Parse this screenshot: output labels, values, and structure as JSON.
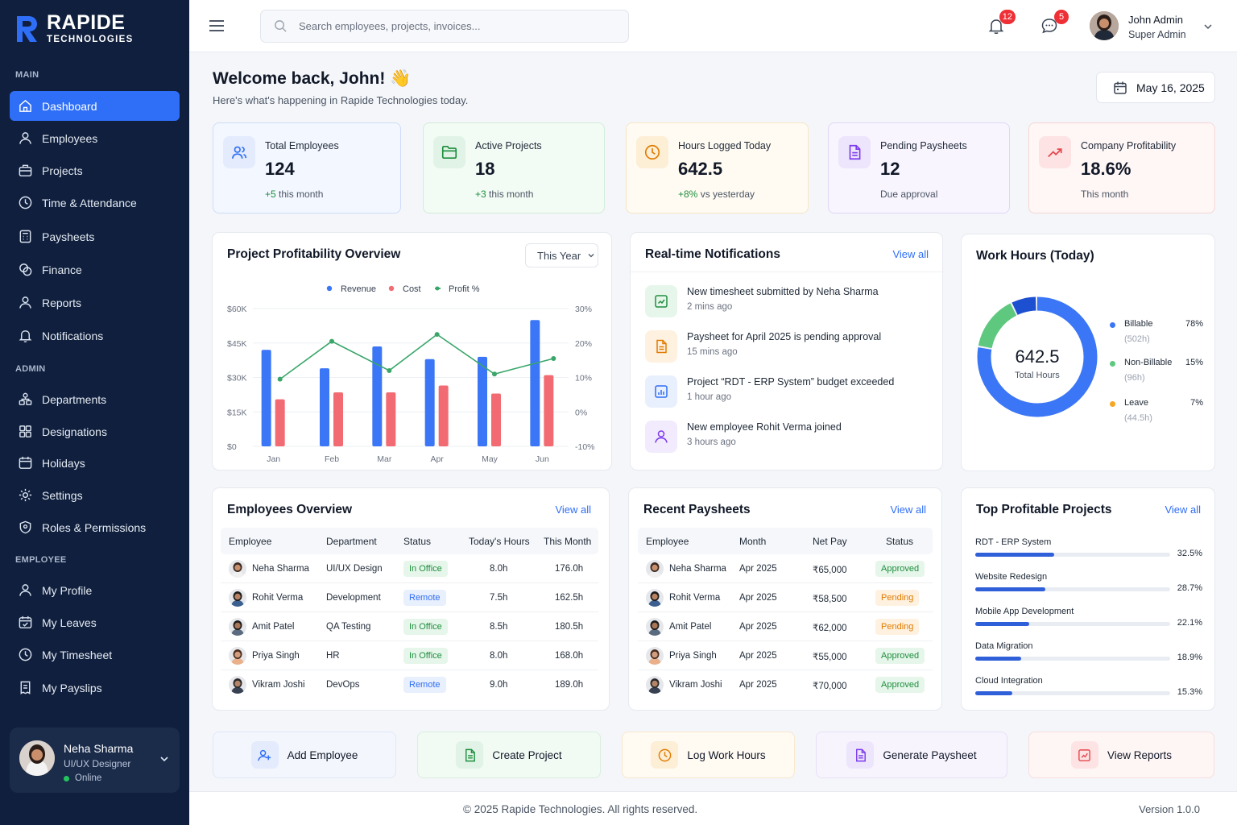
{
  "brand": {
    "name": "RAPIDE",
    "sub": "TECHNOLOGIES",
    "color": "#2f6ef6"
  },
  "sidebar": {
    "sections": {
      "main": "MAIN",
      "admin": "ADMIN",
      "employee": "EMPLOYEE"
    },
    "main_items": [
      {
        "label": "Dashboard",
        "icon": "dashboard-icon"
      },
      {
        "label": "Employees",
        "icon": "user-icon"
      },
      {
        "label": "Projects",
        "icon": "briefcase-icon"
      },
      {
        "label": "Time & Attendance",
        "icon": "clock-icon"
      },
      {
        "label": "Paysheets",
        "icon": "calculator-icon"
      },
      {
        "label": "Finance",
        "icon": "coins-icon"
      },
      {
        "label": "Reports",
        "icon": "user-icon"
      },
      {
        "label": "Notifications",
        "icon": "bell-icon"
      }
    ],
    "admin_items": [
      {
        "label": "Departments",
        "icon": "org-icon"
      },
      {
        "label": "Designations",
        "icon": "grid-icon"
      },
      {
        "label": "Holidays",
        "icon": "calendar-icon"
      },
      {
        "label": "Settings",
        "icon": "gear-icon"
      },
      {
        "label": "Roles & Permissions",
        "icon": "shield-icon"
      }
    ],
    "employee_items": [
      {
        "label": "My Profile",
        "icon": "user-icon"
      },
      {
        "label": "My Leaves",
        "icon": "calendar-check-icon"
      },
      {
        "label": "My Timesheet",
        "icon": "clock-icon"
      },
      {
        "label": "My Payslips",
        "icon": "receipt-icon"
      }
    ],
    "user": {
      "name": "Neha Sharma",
      "role": "UI/UX Designer",
      "status": "Online"
    }
  },
  "topbar": {
    "search_placeholder": "Search employees, projects, invoices...",
    "notifications_count": "12",
    "messages_count": "5",
    "user_name": "John Admin",
    "user_role": "Super Admin"
  },
  "welcome": {
    "title": "Welcome back, John! 👋",
    "subtitle": "Here's what's happening in Rapide Technologies today.",
    "date": "May 16, 2025"
  },
  "stats": [
    {
      "label": "Total Employees",
      "value": "124",
      "sub": "+5 this month",
      "highlight": "+5",
      "rest": " this month",
      "color": "#2f6ef6"
    },
    {
      "label": "Active Projects",
      "value": "18",
      "sub": "+3 this month",
      "highlight": "+3",
      "rest": " this month",
      "color": "#1e8e3e"
    },
    {
      "label": "Hours Logged Today",
      "value": "642.5",
      "sub": "+8% vs yesterday",
      "highlight": "+8%",
      "rest": " vs yesterday",
      "color": "#e07b00"
    },
    {
      "label": "Pending Paysheets",
      "value": "12",
      "sub": "Due approval",
      "highlight": "",
      "rest": "Due approval",
      "color": "#7c3aed"
    },
    {
      "label": "Company Profitability",
      "value": "18.6%",
      "sub": "This month",
      "highlight": "",
      "rest": "This month",
      "color": "#e5484d"
    }
  ],
  "profit_card": {
    "title": "Project Profitability Overview",
    "period": "This Year"
  },
  "chart_data": {
    "type": "bar",
    "categories": [
      "Jan",
      "Feb",
      "Mar",
      "Apr",
      "May",
      "Jun"
    ],
    "series": [
      {
        "name": "Revenue",
        "type": "bar",
        "axis": "left",
        "color": "#3b76f6",
        "values": [
          42,
          34,
          43.5,
          38,
          39,
          55
        ]
      },
      {
        "name": "Cost",
        "type": "bar",
        "axis": "left",
        "color": "#f26b72",
        "values": [
          20.5,
          23.5,
          23.5,
          26.5,
          23,
          31
        ]
      },
      {
        "name": "Profit %",
        "type": "line",
        "axis": "right",
        "color": "#3aa66a",
        "values": [
          9.5,
          20.5,
          12,
          22.5,
          11,
          15.5
        ]
      }
    ],
    "y_left": {
      "ticks": [
        "$0",
        "$15K",
        "$30K",
        "$45K",
        "$60K"
      ],
      "range": [
        0,
        60
      ],
      "unit": "$K"
    },
    "y_right": {
      "ticks": [
        "-10%",
        "0%",
        "10%",
        "20%",
        "30%"
      ],
      "range": [
        -10,
        30
      ]
    },
    "legend": "top-center",
    "grid": true
  },
  "notifications": {
    "title": "Real-time Notifications",
    "view_all": "View all",
    "items": [
      {
        "text": "New timesheet submitted by Neha Sharma",
        "time": "2 mins ago",
        "color": "#1e8e3e",
        "bg": "#e6f6ea",
        "icon": "timesheet-icon"
      },
      {
        "text": "Paysheet for April 2025 is pending approval",
        "time": "15 mins ago",
        "color": "#e07b00",
        "bg": "#fff1e0",
        "icon": "document-icon"
      },
      {
        "text": "Project “RDT - ERP System” budget exceeded",
        "time": "1 hour ago",
        "color": "#2f6ef6",
        "bg": "#e8effd",
        "icon": "chart-icon"
      },
      {
        "text": "New employee Rohit Verma joined",
        "time": "3 hours ago",
        "color": "#7c3aed",
        "bg": "#f1ebfd",
        "icon": "user-icon"
      }
    ]
  },
  "work_hours": {
    "title": "Work Hours (Today)",
    "total": "642.5",
    "total_label": "Total Hours",
    "segments": [
      {
        "name": "Billable",
        "percent": "78%",
        "hours": "(502h)",
        "value": 78,
        "color": "#3b76f6"
      },
      {
        "name": "Non-Billable",
        "percent": "15%",
        "hours": "(96h)",
        "value": 15,
        "color": "#5ec97e"
      },
      {
        "name": "Leave",
        "percent": "7%",
        "hours": "(44.5h)",
        "value": 7,
        "color": "#1d4fd1"
      }
    ],
    "legend_colors": [
      "#3b76f6",
      "#5ec97e",
      "#f5a623"
    ]
  },
  "employees": {
    "title": "Employees Overview",
    "view_all": "View all",
    "headers": [
      "Employee",
      "Department",
      "Status",
      "Today's Hours",
      "This Month"
    ],
    "rows": [
      {
        "name": "Neha Sharma",
        "dept": "UI/UX Design",
        "status": "In Office",
        "kind": "office",
        "today": "8.0h",
        "month": "176.0h"
      },
      {
        "name": "Rohit Verma",
        "dept": "Development",
        "status": "Remote",
        "kind": "remote",
        "today": "7.5h",
        "month": "162.5h"
      },
      {
        "name": "Amit Patel",
        "dept": "QA Testing",
        "status": "In Office",
        "kind": "office",
        "today": "8.5h",
        "month": "180.5h"
      },
      {
        "name": "Priya Singh",
        "dept": "HR",
        "status": "In Office",
        "kind": "office",
        "today": "8.0h",
        "month": "168.0h"
      },
      {
        "name": "Vikram Joshi",
        "dept": "DevOps",
        "status": "Remote",
        "kind": "remote",
        "today": "9.0h",
        "month": "189.0h"
      }
    ]
  },
  "paysheets": {
    "title": "Recent Paysheets",
    "view_all": "View all",
    "headers": [
      "Employee",
      "Month",
      "Net Pay",
      "Status"
    ],
    "rows": [
      {
        "name": "Neha Sharma",
        "month": "Apr 2025",
        "pay": "₹65,000",
        "status": "Approved",
        "kind": "approved"
      },
      {
        "name": "Rohit Verma",
        "month": "Apr 2025",
        "pay": "₹58,500",
        "status": "Pending",
        "kind": "pending"
      },
      {
        "name": "Amit Patel",
        "month": "Apr 2025",
        "pay": "₹62,000",
        "status": "Pending",
        "kind": "pending"
      },
      {
        "name": "Priya Singh",
        "month": "Apr 2025",
        "pay": "₹55,000",
        "status": "Approved",
        "kind": "approved"
      },
      {
        "name": "Vikram Joshi",
        "month": "Apr 2025",
        "pay": "₹70,000",
        "status": "Approved",
        "kind": "approved"
      }
    ]
  },
  "top_projects": {
    "title": "Top Profitable Projects",
    "view_all": "View all",
    "items": [
      {
        "name": "RDT - ERP System",
        "percent": "32.5%",
        "value": 32.5
      },
      {
        "name": "Website Redesign",
        "percent": "28.7%",
        "value": 28.7
      },
      {
        "name": "Mobile App Development",
        "percent": "22.1%",
        "value": 22.1
      },
      {
        "name": "Data Migration",
        "percent": "18.9%",
        "value": 18.9
      },
      {
        "name": "Cloud Integration",
        "percent": "15.3%",
        "value": 15.3
      }
    ]
  },
  "quick_actions": [
    {
      "label": "Add Employee",
      "color": "#2f6ef6",
      "bg": "#f3f6fd",
      "border": "#dfe7f8",
      "icon": "add-user-icon"
    },
    {
      "label": "Create Project",
      "color": "#1e8e3e",
      "bg": "#f1faf3",
      "border": "#d9efdf",
      "icon": "document-icon"
    },
    {
      "label": "Log Work Hours",
      "color": "#e07b00",
      "bg": "#fffaf2",
      "border": "#f8e8cf",
      "icon": "clock-icon"
    },
    {
      "label": "Generate Paysheet",
      "color": "#7c3aed",
      "bg": "#f7f4fe",
      "border": "#e8e0f8",
      "icon": "document-icon"
    },
    {
      "label": "View Reports",
      "color": "#e5484d",
      "bg": "#fef5f5",
      "border": "#f8dede",
      "icon": "report-icon"
    }
  ],
  "footer": {
    "copyright": "© 2025 Rapide Technologies. All rights reserved.",
    "version": "Version 1.0.0"
  }
}
